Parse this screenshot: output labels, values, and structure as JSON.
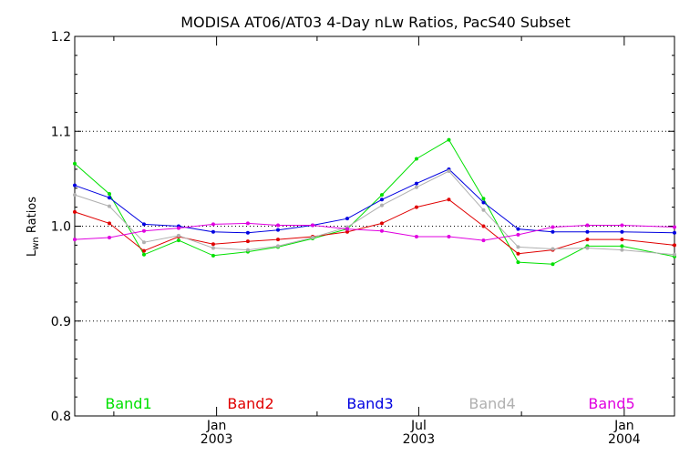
{
  "chart_data": {
    "type": "line",
    "title": "MODISA AT06/AT03 4-Day nLw Ratios, PacS40 Subset",
    "ylabel_main": "L",
    "ylabel_sub": "wn",
    "ylabel_rest": " Ratios",
    "xlabel": "",
    "ylim": [
      0.8,
      1.2
    ],
    "xlim": [
      "2002-08-27",
      "2004-02-15"
    ],
    "y_ticks": [
      "0.8",
      "0.9",
      "1.0",
      "1.1",
      "1.2"
    ],
    "gridlines_y": [
      0.9,
      1.0,
      1.1
    ],
    "x_ticks": [
      {
        "date": "2003-01-01",
        "month": "Jan",
        "year": "2003"
      },
      {
        "date": "2003-07-01",
        "month": "Jul",
        "year": "2003"
      },
      {
        "date": "2004-01-01",
        "month": "Jan",
        "year": "2004"
      }
    ],
    "x_minor_ticks": [
      "2002-10-01",
      "2003-04-01",
      "2003-10-01"
    ],
    "x": [
      "2002-08-27",
      "2002-09-27",
      "2002-10-28",
      "2002-11-28",
      "2002-12-29",
      "2003-01-29",
      "2003-02-25",
      "2003-03-28",
      "2003-04-28",
      "2003-05-29",
      "2003-06-29",
      "2003-07-28",
      "2003-08-28",
      "2003-09-28",
      "2003-10-29",
      "2003-11-29",
      "2003-12-30",
      "2004-02-15"
    ],
    "legend_position": "bottom",
    "series": [
      {
        "name": "Band1",
        "color": "#00e000",
        "values": [
          1.066,
          1.034,
          0.97,
          0.985,
          0.969,
          0.973,
          0.978,
          0.987,
          0.997,
          1.033,
          1.071,
          1.091,
          1.029,
          0.962,
          0.96,
          0.979,
          0.979,
          0.968
        ]
      },
      {
        "name": "Band2",
        "color": "#e00000",
        "values": [
          1.015,
          1.003,
          0.974,
          0.989,
          0.981,
          0.984,
          0.986,
          0.989,
          0.994,
          1.003,
          1.02,
          1.028,
          1.0,
          0.971,
          0.975,
          0.986,
          0.986,
          0.98
        ]
      },
      {
        "name": "Band3",
        "color": "#0000e0",
        "values": [
          1.043,
          1.03,
          1.002,
          1.0,
          0.994,
          0.993,
          0.996,
          1.001,
          1.008,
          1.028,
          1.045,
          1.06,
          1.025,
          0.997,
          0.994,
          0.994,
          0.994,
          0.993
        ]
      },
      {
        "name": "Band4",
        "color": "#b0b0b0",
        "values": [
          1.033,
          1.021,
          0.983,
          0.99,
          0.977,
          0.975,
          0.979,
          0.988,
          0.999,
          1.022,
          1.041,
          1.058,
          1.017,
          0.978,
          0.976,
          0.977,
          0.975,
          0.97
        ]
      },
      {
        "name": "Band5",
        "color": "#e000e0",
        "values": [
          0.986,
          0.988,
          0.995,
          0.998,
          1.002,
          1.003,
          1.001,
          1.001,
          0.997,
          0.995,
          0.989,
          0.989,
          0.985,
          0.991,
          0.999,
          1.001,
          1.001,
          0.999
        ]
      }
    ]
  }
}
